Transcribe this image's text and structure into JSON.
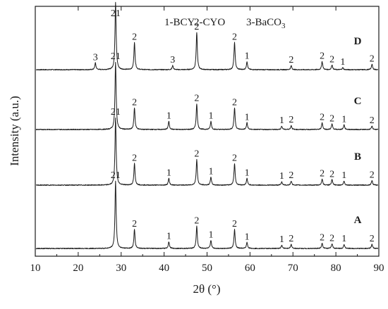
{
  "chart_data": {
    "type": "line",
    "title": "",
    "xlabel": "2θ (°)",
    "ylabel": "Intensity (a.u.)",
    "xlim": [
      10,
      90
    ],
    "x_ticks": [
      10,
      20,
      30,
      40,
      50,
      60,
      70,
      80,
      90
    ],
    "grid": false,
    "legend": {
      "placement": "top",
      "entries": [
        {
          "id": "1",
          "text": "1-BCY"
        },
        {
          "id": "2",
          "text": "2-CYO"
        },
        {
          "id": "3",
          "text": "3-BaCO"
        },
        {
          "id": "3-sub",
          "text": "3"
        }
      ]
    },
    "series": [
      {
        "name": "D",
        "peaks": [
          {
            "x": 24.0,
            "h": 0.1,
            "label": "3"
          },
          {
            "x": 28.7,
            "h": 1.0,
            "label": "21"
          },
          {
            "x": 33.1,
            "h": 0.4,
            "label": "2"
          },
          {
            "x": 42.0,
            "h": 0.06,
            "label": "3"
          },
          {
            "x": 47.6,
            "h": 0.55,
            "label": "2"
          },
          {
            "x": 56.4,
            "h": 0.4,
            "label": "2"
          },
          {
            "x": 59.3,
            "h": 0.12,
            "label": "1"
          },
          {
            "x": 69.6,
            "h": 0.06,
            "label": "2"
          },
          {
            "x": 76.8,
            "h": 0.12,
            "label": "2"
          },
          {
            "x": 79.1,
            "h": 0.07,
            "label": "2"
          },
          {
            "x": 81.6,
            "h": 0.03,
            "label": "1"
          },
          {
            "x": 88.4,
            "h": 0.08,
            "label": "2"
          }
        ]
      },
      {
        "name": "C",
        "peaks": [
          {
            "x": 28.7,
            "h": 1.0,
            "label": "21"
          },
          {
            "x": 33.1,
            "h": 0.32,
            "label": "2"
          },
          {
            "x": 41.1,
            "h": 0.12,
            "label": "1"
          },
          {
            "x": 47.6,
            "h": 0.38,
            "label": "2"
          },
          {
            "x": 50.9,
            "h": 0.12,
            "label": "1"
          },
          {
            "x": 56.4,
            "h": 0.32,
            "label": "2"
          },
          {
            "x": 59.3,
            "h": 0.1,
            "label": "1"
          },
          {
            "x": 67.4,
            "h": 0.05,
            "label": "1"
          },
          {
            "x": 69.6,
            "h": 0.06,
            "label": "2"
          },
          {
            "x": 76.8,
            "h": 0.1,
            "label": "2"
          },
          {
            "x": 79.1,
            "h": 0.08,
            "label": "2"
          },
          {
            "x": 81.9,
            "h": 0.07,
            "label": "1"
          },
          {
            "x": 88.4,
            "h": 0.05,
            "label": "2"
          }
        ]
      },
      {
        "name": "B",
        "peaks": [
          {
            "x": 28.7,
            "h": 1.0,
            "label": "21"
          },
          {
            "x": 33.1,
            "h": 0.32,
            "label": "2"
          },
          {
            "x": 41.1,
            "h": 0.1,
            "label": "1"
          },
          {
            "x": 47.6,
            "h": 0.38,
            "label": "2"
          },
          {
            "x": 50.9,
            "h": 0.12,
            "label": "1"
          },
          {
            "x": 56.4,
            "h": 0.32,
            "label": "2"
          },
          {
            "x": 59.3,
            "h": 0.1,
            "label": "1"
          },
          {
            "x": 67.4,
            "h": 0.05,
            "label": "1"
          },
          {
            "x": 69.6,
            "h": 0.06,
            "label": "2"
          },
          {
            "x": 76.8,
            "h": 0.09,
            "label": "2"
          },
          {
            "x": 79.1,
            "h": 0.08,
            "label": "2"
          },
          {
            "x": 81.9,
            "h": 0.06,
            "label": "1"
          },
          {
            "x": 88.4,
            "h": 0.07,
            "label": "2"
          }
        ]
      },
      {
        "name": "A",
        "peaks": [
          {
            "x": 28.7,
            "h": 1.0,
            "label": "21"
          },
          {
            "x": 33.1,
            "h": 0.28,
            "label": "2"
          },
          {
            "x": 41.1,
            "h": 0.1,
            "label": "1"
          },
          {
            "x": 47.6,
            "h": 0.33,
            "label": "2"
          },
          {
            "x": 50.9,
            "h": 0.12,
            "label": "1"
          },
          {
            "x": 56.4,
            "h": 0.28,
            "label": "2"
          },
          {
            "x": 59.3,
            "h": 0.09,
            "label": "1"
          },
          {
            "x": 67.4,
            "h": 0.05,
            "label": "1"
          },
          {
            "x": 69.6,
            "h": 0.06,
            "label": "2"
          },
          {
            "x": 76.8,
            "h": 0.08,
            "label": "2"
          },
          {
            "x": 79.1,
            "h": 0.07,
            "label": "2"
          },
          {
            "x": 81.9,
            "h": 0.06,
            "label": "1"
          },
          {
            "x": 88.4,
            "h": 0.06,
            "label": "2"
          }
        ]
      }
    ]
  }
}
